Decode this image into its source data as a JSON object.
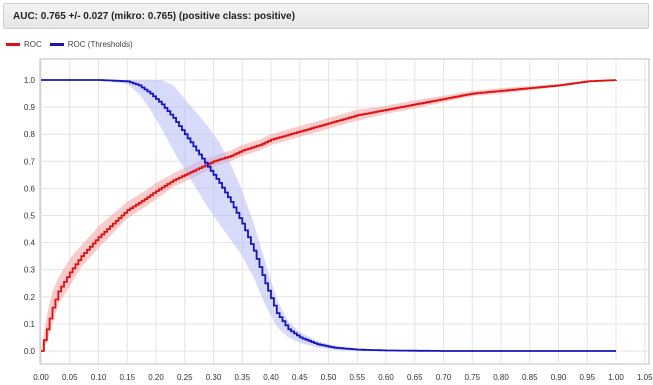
{
  "header": {
    "title": "AUC: 0.765 +/- 0.027 (mikro: 0.765) (positive class: positive)"
  },
  "chart_data": {
    "type": "line",
    "title": "AUC: 0.765 +/- 0.027 (mikro: 0.765) (positive class: positive)",
    "xlabel": "",
    "ylabel": "",
    "xlim": [
      0,
      1.05
    ],
    "ylim": [
      0,
      1.0
    ],
    "grid": true,
    "legend_position": "top-left",
    "x_ticks": [
      "0.00",
      "0.05",
      "0.10",
      "0.15",
      "0.20",
      "0.25",
      "0.30",
      "0.35",
      "0.40",
      "0.45",
      "0.50",
      "0.55",
      "0.60",
      "0.65",
      "0.70",
      "0.75",
      "0.80",
      "0.85",
      "0.90",
      "0.95",
      "1.00",
      "1.05"
    ],
    "y_ticks": [
      "0.0",
      "0.1",
      "0.2",
      "0.3",
      "0.4",
      "0.5",
      "0.6",
      "0.7",
      "0.8",
      "0.9",
      "1.0"
    ],
    "series": [
      {
        "name": "ROC",
        "color": "#dd1111",
        "band_color": "#f5a0a0",
        "x": [
          0.0,
          0.01,
          0.02,
          0.03,
          0.05,
          0.07,
          0.1,
          0.13,
          0.15,
          0.18,
          0.2,
          0.23,
          0.25,
          0.28,
          0.3,
          0.33,
          0.35,
          0.38,
          0.4,
          0.45,
          0.5,
          0.55,
          0.6,
          0.65,
          0.7,
          0.75,
          0.8,
          0.85,
          0.9,
          0.95,
          1.0
        ],
        "y": [
          0.0,
          0.08,
          0.16,
          0.22,
          0.29,
          0.35,
          0.42,
          0.48,
          0.52,
          0.56,
          0.59,
          0.63,
          0.65,
          0.68,
          0.7,
          0.72,
          0.74,
          0.76,
          0.78,
          0.81,
          0.84,
          0.87,
          0.89,
          0.91,
          0.93,
          0.95,
          0.96,
          0.97,
          0.98,
          0.995,
          1.0
        ],
        "band": [
          0.0,
          0.05,
          0.06,
          0.05,
          0.05,
          0.04,
          0.04,
          0.035,
          0.03,
          0.03,
          0.03,
          0.025,
          0.025,
          0.025,
          0.02,
          0.02,
          0.02,
          0.02,
          0.02,
          0.02,
          0.02,
          0.02,
          0.015,
          0.015,
          0.012,
          0.01,
          0.01,
          0.008,
          0.005,
          0.003,
          0.0
        ]
      },
      {
        "name": "ROC (Thresholds)",
        "color": "#1515bb",
        "band_color": "#b8bcf6",
        "x": [
          0.0,
          0.1,
          0.15,
          0.17,
          0.19,
          0.21,
          0.23,
          0.25,
          0.27,
          0.29,
          0.31,
          0.33,
          0.35,
          0.37,
          0.39,
          0.41,
          0.43,
          0.45,
          0.48,
          0.51,
          0.55,
          0.6,
          0.7,
          0.8,
          0.9,
          1.0
        ],
        "y": [
          1.0,
          1.0,
          0.995,
          0.98,
          0.95,
          0.91,
          0.86,
          0.8,
          0.74,
          0.68,
          0.62,
          0.55,
          0.47,
          0.37,
          0.25,
          0.14,
          0.08,
          0.05,
          0.025,
          0.012,
          0.005,
          0.002,
          0.0,
          0.0,
          0.0,
          0.0
        ],
        "band": [
          0.0,
          0.0,
          0.01,
          0.03,
          0.06,
          0.09,
          0.12,
          0.13,
          0.14,
          0.15,
          0.15,
          0.14,
          0.12,
          0.1,
          0.08,
          0.05,
          0.03,
          0.02,
          0.012,
          0.008,
          0.004,
          0.002,
          0.0,
          0.0,
          0.0,
          0.0
        ]
      }
    ]
  }
}
